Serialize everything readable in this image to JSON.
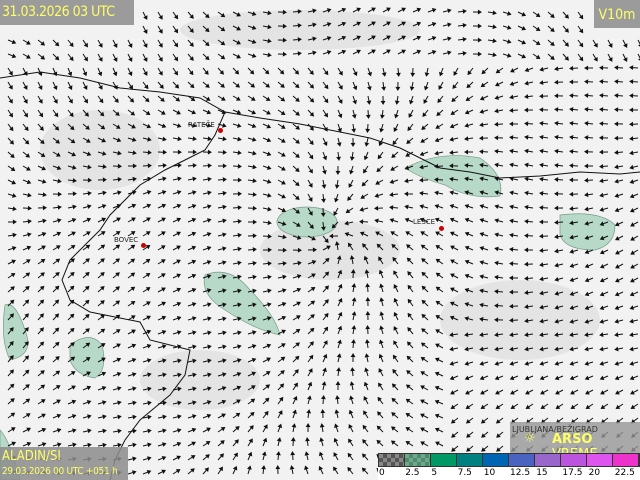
{
  "header": {
    "timestamp": "31.03.2026 03 UTC",
    "variable": "V10m"
  },
  "footer": {
    "model": "ALADIN/SI",
    "run": "29.03.2026 00 UTC +051 h"
  },
  "stations": [
    {
      "name": "RATEČE"
    },
    {
      "name": "BOVEC"
    },
    {
      "name": "LESCE"
    },
    {
      "name": "LJUBLJANA/BEŽIGRAD"
    }
  ],
  "brand": {
    "name_bold": "ARSO",
    "name_light": " VREME",
    "icon": "sun-icon"
  },
  "legend": {
    "labels": [
      "0",
      "2.5",
      "5",
      "7.5",
      "10",
      "12.5",
      "15",
      "17.5",
      "20",
      "22.5"
    ],
    "colors": [
      "#555555",
      "#4d8a6e",
      "#009966",
      "#008080",
      "#0066b3",
      "#4b63c0",
      "#9966cc",
      "#bb55dd",
      "#dd55ee",
      "#ee33cc"
    ]
  },
  "colors": {
    "label_text": "#ffff66",
    "marker": "#cc0000",
    "shaded_area": "#b7d9c8"
  }
}
